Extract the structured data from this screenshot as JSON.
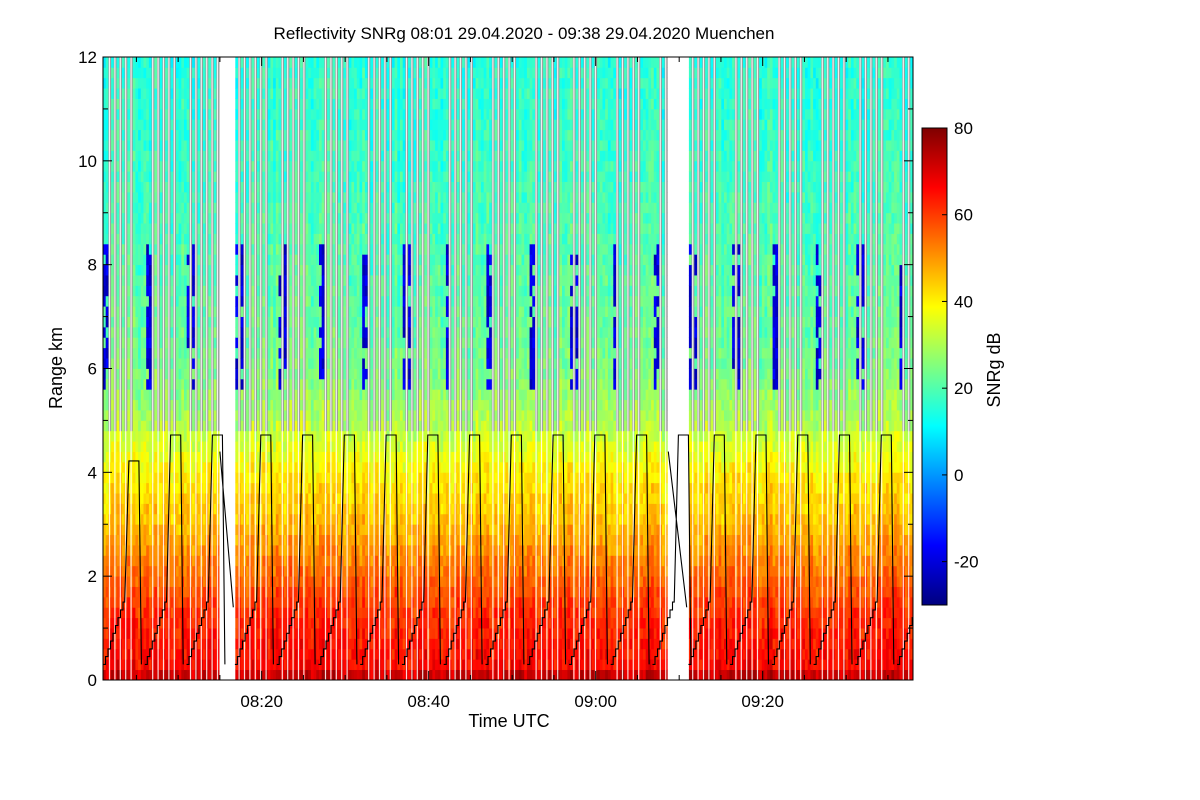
{
  "chart_data": {
    "type": "heatmap",
    "title": "Reflectivity SNRg   08:01 29.04.2020 - 09:38 29.04.2020 Muenchen",
    "xlabel": "Time UTC",
    "ylabel": "Range km",
    "colorbar_label": "SNRg dB",
    "x_range_min": [
      481,
      578
    ],
    "ylim": [
      0,
      12
    ],
    "color_range": [
      -30,
      80
    ],
    "x_ticks": [
      {
        "min": 500,
        "label": "08:20"
      },
      {
        "min": 520,
        "label": "08:40"
      },
      {
        "min": 540,
        "label": "09:00"
      },
      {
        "min": 560,
        "label": "09:20"
      }
    ],
    "y_ticks": [
      {
        "value": 0,
        "label": "0"
      },
      {
        "value": 2,
        "label": "2"
      },
      {
        "value": 4,
        "label": "4"
      },
      {
        "value": 6,
        "label": "6"
      },
      {
        "value": 8,
        "label": "8"
      },
      {
        "value": 10,
        "label": "10"
      },
      {
        "value": 12,
        "label": "12"
      }
    ],
    "colorbar_ticks": [
      {
        "value": -20,
        "label": "-20"
      },
      {
        "value": 0,
        "label": "0"
      },
      {
        "value": 20,
        "label": "20"
      },
      {
        "value": 40,
        "label": "40"
      },
      {
        "value": 60,
        "label": "60"
      },
      {
        "value": 80,
        "label": "80"
      }
    ],
    "data_gaps_min": [
      [
        495.0,
        496.8
      ],
      [
        548.7,
        551.1
      ]
    ],
    "scan_cycle_starts_min": [
      481.0,
      486.0,
      491.0,
      496.8,
      501.8,
      506.8,
      511.8,
      516.8,
      521.8,
      526.8,
      531.8,
      536.8,
      541.8,
      546.8,
      551.1,
      556.1,
      561.1,
      566.1,
      571.1,
      576.1
    ],
    "scan_plateau_km": [
      4.22,
      4.72,
      4.72,
      4.72,
      4.72,
      4.72,
      4.72,
      4.72,
      4.72,
      4.72,
      4.72,
      4.72,
      4.72,
      4.72,
      4.72,
      4.72,
      4.72,
      4.72,
      4.72,
      4.72
    ],
    "snr_profile": [
      {
        "km": 0.0,
        "db": 75
      },
      {
        "km": 0.3,
        "db": 66
      },
      {
        "km": 1.2,
        "db": 62
      },
      {
        "km": 2.0,
        "db": 55
      },
      {
        "km": 3.0,
        "db": 46
      },
      {
        "km": 4.0,
        "db": 40
      },
      {
        "km": 5.0,
        "db": 30
      },
      {
        "km": 6.0,
        "db": 24
      },
      {
        "km": 8.0,
        "db": 20
      },
      {
        "km": 10.0,
        "db": 17
      },
      {
        "km": 12.0,
        "db": 15
      }
    ],
    "low_snr_band_km": [
      5.5,
      8.3
    ],
    "low_snr_db": -25
  }
}
